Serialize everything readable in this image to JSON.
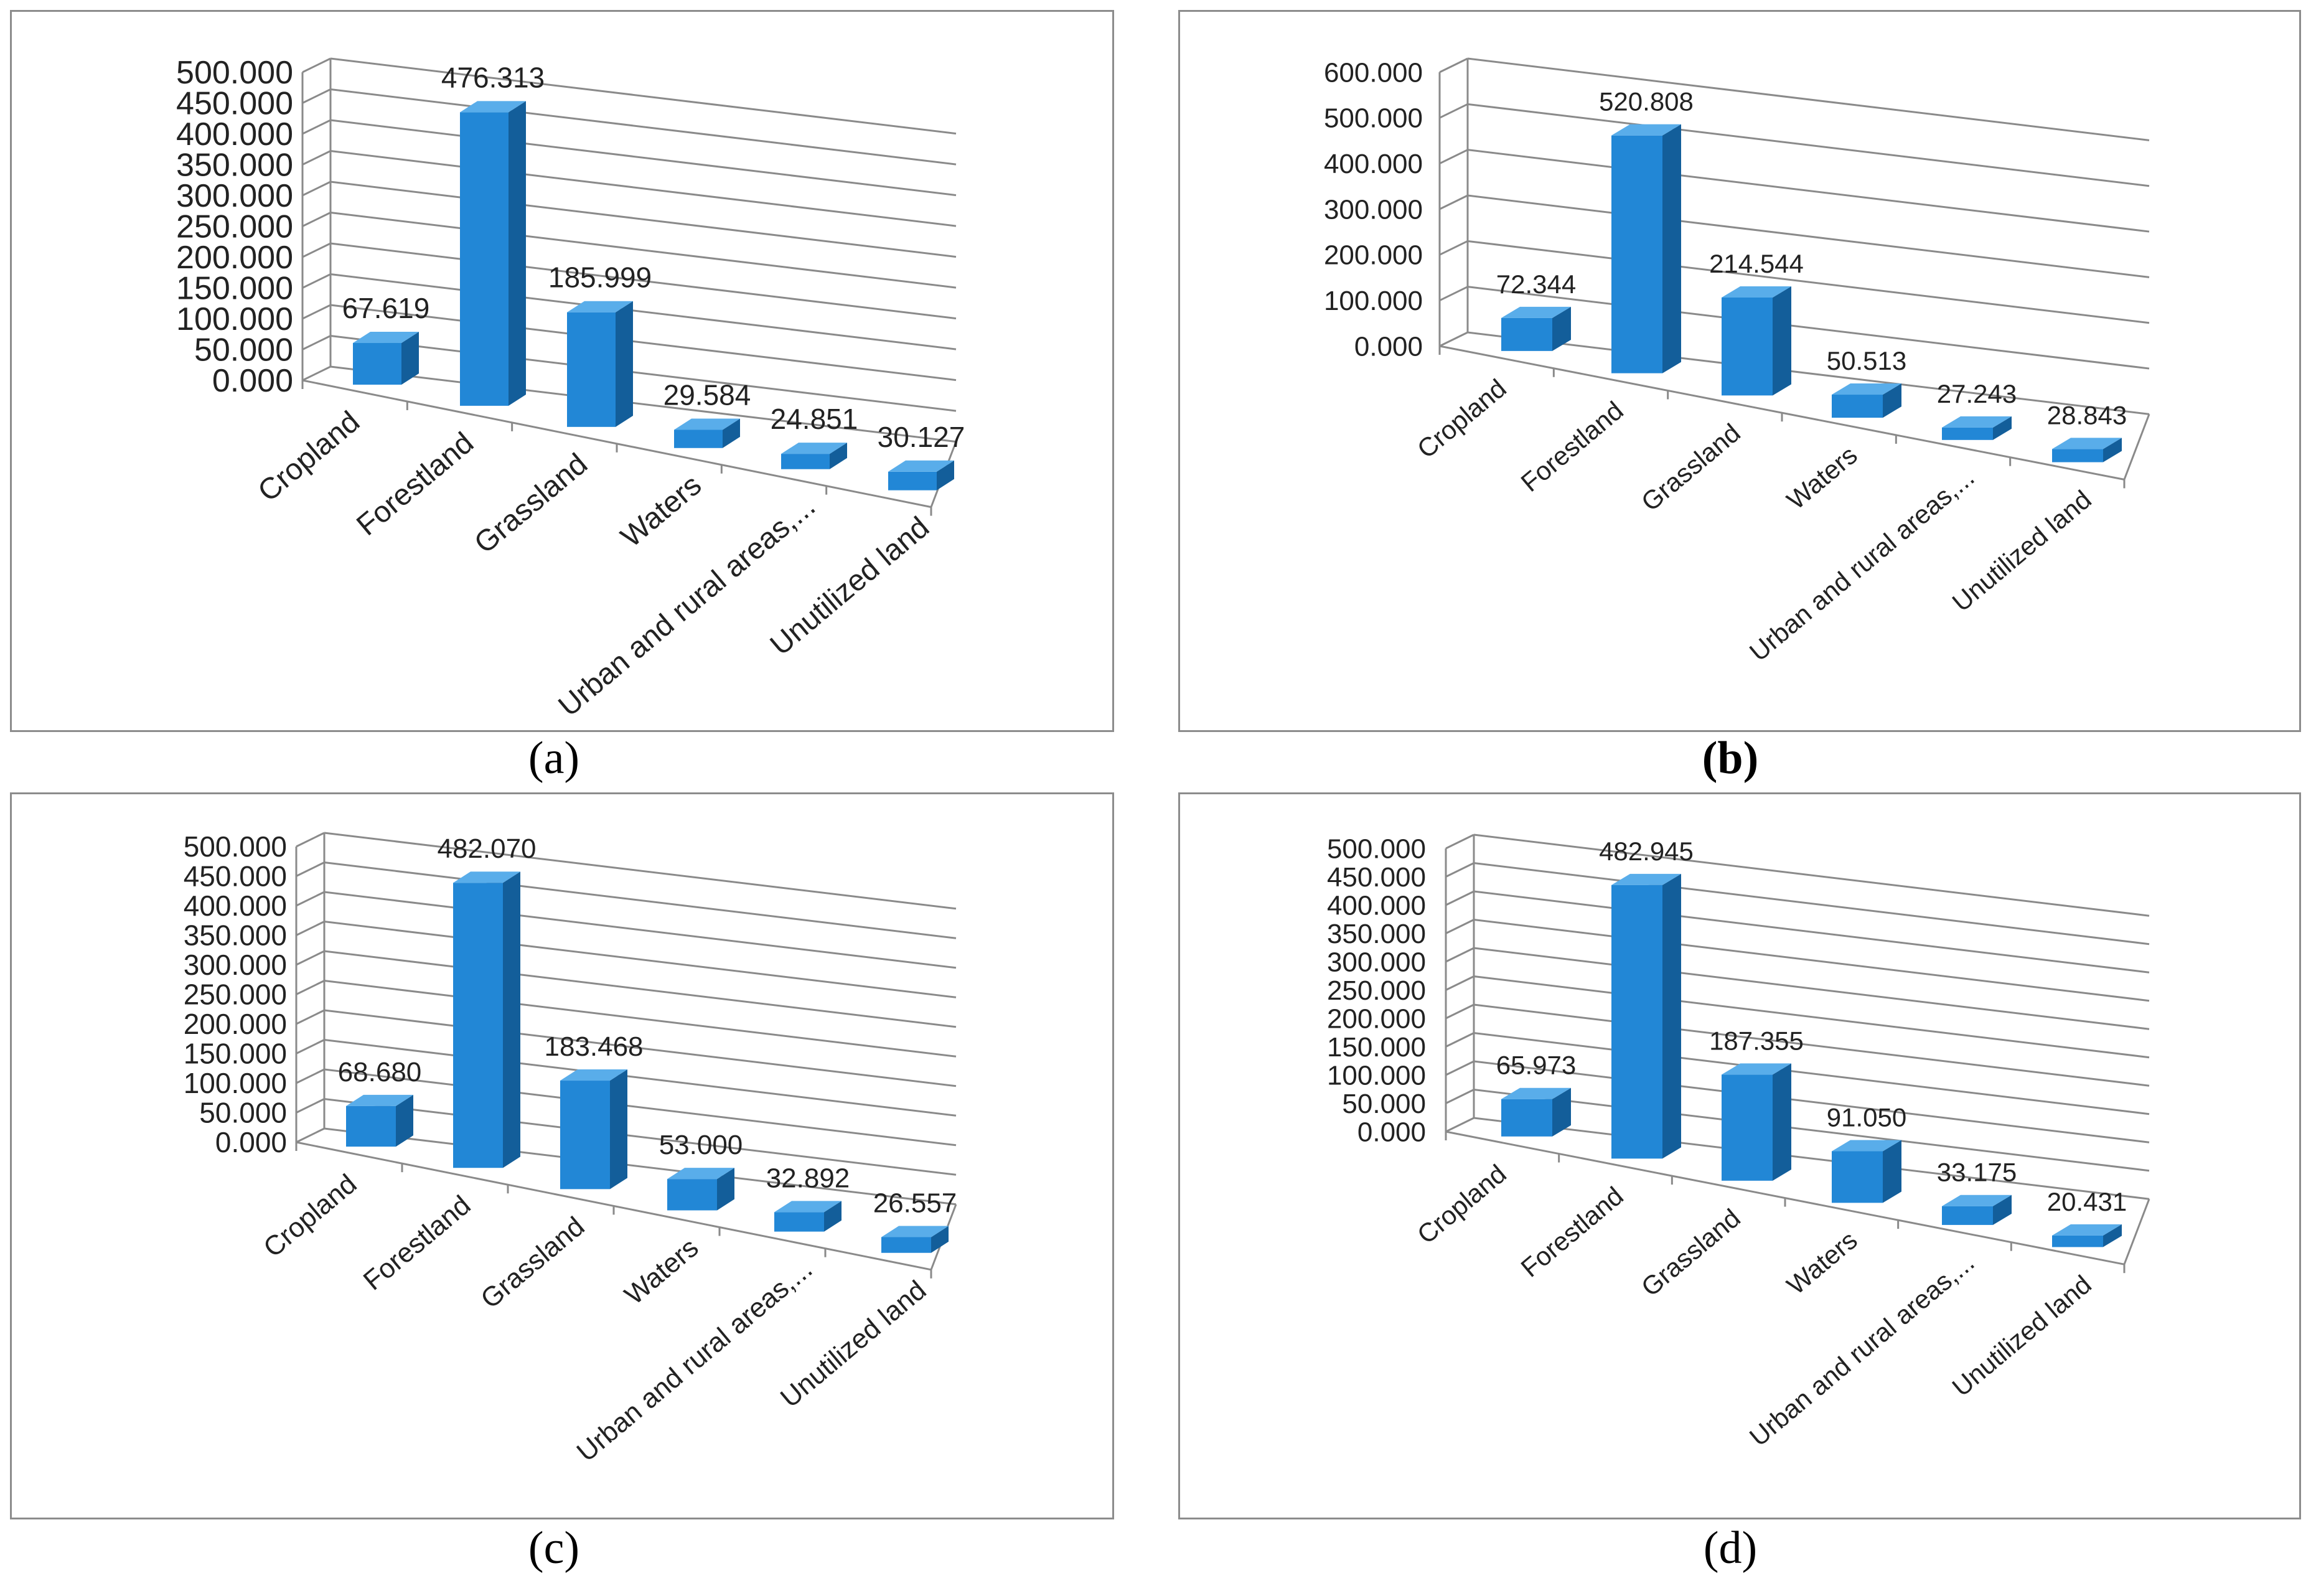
{
  "colors": {
    "front": "#2287d6",
    "side": "#135e9a",
    "top": "#59adea",
    "grid": "#8a8a8a",
    "text": "#222222",
    "frame": "#8c8c8c"
  },
  "chart_data": [
    {
      "type": "bar",
      "panel": "a",
      "caption": "(a)",
      "caption_bold": false,
      "categories": [
        "Cropland",
        "Forestland",
        "Grassland",
        "Waters",
        "Urban and rural areas,...",
        "Unutilized land"
      ],
      "values": [
        67.619,
        476.313,
        185.999,
        29.584,
        24.851,
        30.127
      ],
      "value_labels": [
        "67.619",
        "476.313",
        "185.999",
        "29.584",
        "24.851",
        "30.127"
      ],
      "yticks": [
        "0.000",
        "50.000",
        "100.000",
        "150.000",
        "200.000",
        "250.000",
        "300.000",
        "350.000",
        "400.000",
        "450.000",
        "500.000"
      ],
      "ylim": [
        0,
        500
      ],
      "xlabel": "",
      "ylabel": "",
      "title": ""
    },
    {
      "type": "bar",
      "panel": "b",
      "caption": "(b)",
      "caption_bold": true,
      "categories": [
        "Cropland",
        "Forestland",
        "Grassland",
        "Waters",
        "Urban and rural areas,...",
        "Unutilized land"
      ],
      "values": [
        72.344,
        520.808,
        214.544,
        50.513,
        27.243,
        28.843
      ],
      "value_labels": [
        "72.344",
        "520.808",
        "214.544",
        "50.513",
        "27.243",
        "28.843"
      ],
      "yticks": [
        "0.000",
        "100.000",
        "200.000",
        "300.000",
        "400.000",
        "500.000",
        "600.000"
      ],
      "ylim": [
        0,
        600
      ],
      "xlabel": "",
      "ylabel": "",
      "title": ""
    },
    {
      "type": "bar",
      "panel": "c",
      "caption": "(c)",
      "caption_bold": false,
      "categories": [
        "Cropland",
        "Forestland",
        "Grassland",
        "Waters",
        "Urban and rural areas,...",
        "Unutilized land"
      ],
      "values": [
        68.68,
        482.07,
        183.468,
        53.0,
        32.892,
        26.557
      ],
      "value_labels": [
        "68.680",
        "482.070",
        "183.468",
        "53.000",
        "32.892",
        "26.557"
      ],
      "yticks": [
        "0.000",
        "50.000",
        "100.000",
        "150.000",
        "200.000",
        "250.000",
        "300.000",
        "350.000",
        "400.000",
        "450.000",
        "500.000"
      ],
      "ylim": [
        0,
        500
      ],
      "xlabel": "",
      "ylabel": "",
      "title": ""
    },
    {
      "type": "bar",
      "panel": "d",
      "caption": "(d)",
      "caption_bold": false,
      "categories": [
        "Cropland",
        "Forestland",
        "Grassland",
        "Waters",
        "Urban and rural areas,...",
        "Unutilized land"
      ],
      "values": [
        65.973,
        482.945,
        187.355,
        91.05,
        33.175,
        20.431
      ],
      "value_labels": [
        "65.973",
        "482.945",
        "187.355",
        "91.050",
        "33.175",
        "20.431"
      ],
      "yticks": [
        "0.000",
        "50.000",
        "100.000",
        "150.000",
        "200.000",
        "250.000",
        "300.000",
        "350.000",
        "400.000",
        "450.000",
        "500.000"
      ],
      "ylim": [
        0,
        500
      ],
      "xlabel": "",
      "ylabel": "",
      "title": ""
    }
  ]
}
